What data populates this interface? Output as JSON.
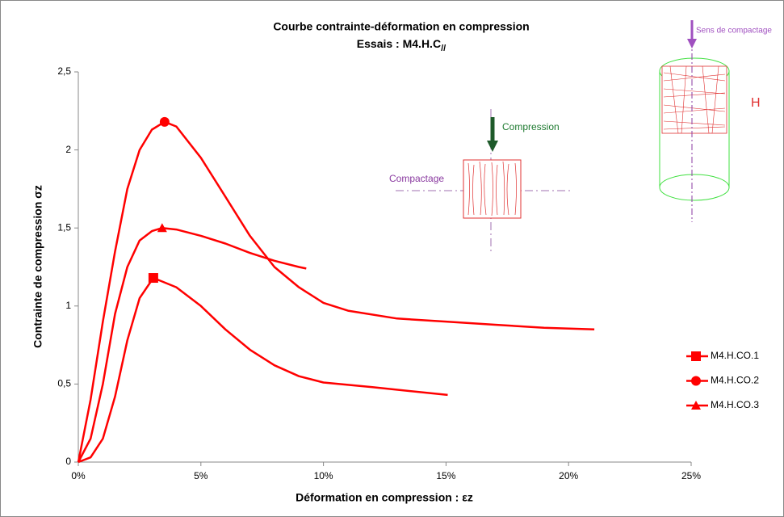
{
  "chart_data": {
    "type": "line",
    "title": "Courbe contrainte-déformation en compression",
    "subtitle": "Essais : M4.H.C",
    "subtitle_sub": "//",
    "x_label": "Déformation en compression :  εz",
    "y_label": "Contrainte de compression   σz",
    "xlim": [
      0,
      25
    ],
    "xticks": [
      {
        "value": 0,
        "label": "0%"
      },
      {
        "value": 5,
        "label": "5%"
      },
      {
        "value": 10,
        "label": "10%"
      },
      {
        "value": 15,
        "label": "15%"
      },
      {
        "value": 20,
        "label": "20%"
      },
      {
        "value": 25,
        "label": "25%"
      }
    ],
    "ylim": [
      0,
      2.5
    ],
    "yticks": [
      0,
      {
        "value": 0.5,
        "label": "0,5"
      },
      1,
      {
        "value": 1.5,
        "label": "1,5"
      },
      2,
      {
        "value": 2.5,
        "label": "2,5"
      }
    ],
    "grid": false,
    "legend": "right",
    "series": [
      {
        "name": "M4.H.CO.1",
        "color": "#ff0000",
        "marker": "square",
        "x": [
          0,
          0.5,
          1,
          1.5,
          2,
          2.5,
          3.06,
          4,
          5,
          6,
          7,
          8,
          9,
          10,
          12,
          15.07
        ],
        "values": [
          0,
          0.03,
          0.15,
          0.42,
          0.78,
          1.05,
          1.18,
          1.12,
          1.0,
          0.85,
          0.72,
          0.62,
          0.55,
          0.51,
          0.48,
          0.43
        ]
      },
      {
        "name": "M4.H.CO.2",
        "color": "#ff0000",
        "marker": "circle",
        "x": [
          0,
          0.5,
          1,
          1.5,
          2,
          2.5,
          3,
          3.52,
          4,
          5,
          6,
          7,
          8,
          9,
          10,
          11,
          13,
          15,
          17,
          19,
          21.05
        ],
        "values": [
          0,
          0.4,
          0.9,
          1.35,
          1.75,
          2.0,
          2.13,
          2.18,
          2.15,
          1.95,
          1.7,
          1.45,
          1.25,
          1.12,
          1.02,
          0.97,
          0.92,
          0.9,
          0.88,
          0.86,
          0.85
        ]
      },
      {
        "name": "M4.H.CO.3",
        "color": "#ff0000",
        "marker": "triangle",
        "x": [
          0,
          0.5,
          1,
          1.5,
          2,
          2.5,
          3,
          3.42,
          4,
          5,
          6,
          7,
          8,
          9,
          9.3
        ],
        "values": [
          0,
          0.15,
          0.5,
          0.95,
          1.25,
          1.42,
          1.48,
          1.5,
          1.49,
          1.45,
          1.4,
          1.34,
          1.29,
          1.25,
          1.24
        ]
      }
    ],
    "annotations": [
      "Compression",
      "Compactage",
      "Sens de compactage",
      "H"
    ]
  }
}
